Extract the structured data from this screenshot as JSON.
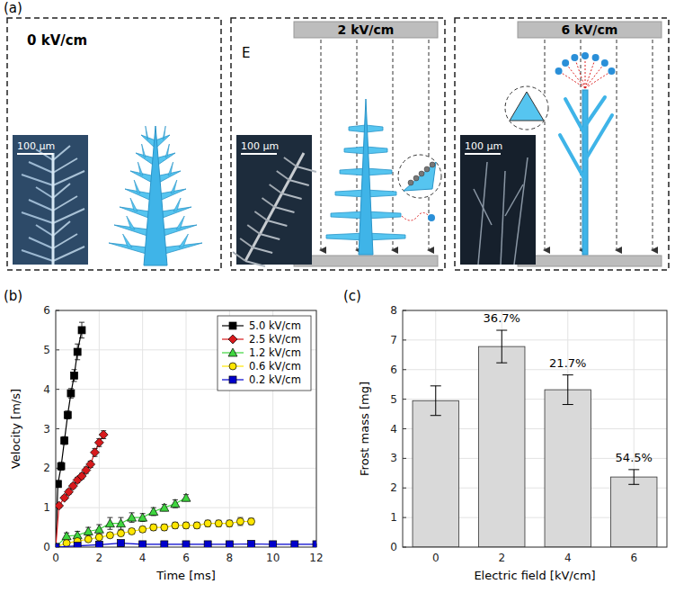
{
  "figure": {
    "panel_labels": [
      "(a)",
      "(b)",
      "(c)"
    ]
  },
  "diagram": {
    "field_symbol": "E",
    "panels": [
      {
        "field": "0 kV/cm",
        "scale_bar": "100 µm"
      },
      {
        "field": "2 kV/cm",
        "scale_bar": "100 µm"
      },
      {
        "field": "6 kV/cm",
        "scale_bar": "100 µm"
      }
    ]
  },
  "chart_data": [
    {
      "type": "line",
      "x_label": "Time [ms]",
      "y_label": "Velocity [m/s]",
      "xlim": [
        0,
        12
      ],
      "xticks": [
        0,
        2,
        4,
        6,
        8,
        10,
        12
      ],
      "ylim": [
        0,
        6
      ],
      "yticks": [
        0,
        1,
        2,
        3,
        4,
        5,
        6
      ],
      "grid": true,
      "legend": "upper right",
      "series": [
        {
          "name": "5.0 kV/cm",
          "color": "#000000",
          "marker": "square",
          "x": [
            0,
            0.1,
            0.25,
            0.4,
            0.55,
            0.7,
            0.85,
            1.0,
            1.2
          ],
          "values": [
            0,
            1.6,
            2.05,
            2.7,
            3.35,
            3.9,
            4.35,
            4.95,
            5.5
          ],
          "errors": [
            0,
            0.08,
            0.1,
            0.1,
            0.1,
            0.12,
            0.15,
            0.2,
            0.2
          ]
        },
        {
          "name": "2.5 kV/cm",
          "color": "#d7191c",
          "marker": "diamond",
          "x": [
            0,
            0.15,
            0.4,
            0.6,
            0.8,
            1.0,
            1.2,
            1.4,
            1.6,
            1.8,
            2.0,
            2.2
          ],
          "values": [
            0,
            1.05,
            1.25,
            1.4,
            1.55,
            1.7,
            1.8,
            1.95,
            2.1,
            2.4,
            2.65,
            2.85
          ],
          "errors": [
            0,
            0.05,
            0.05,
            0.06,
            0.06,
            0.07,
            0.07,
            0.08,
            0.08,
            0.1,
            0.1,
            0.1
          ]
        },
        {
          "name": "1.2 kV/cm",
          "color": "#3fd63f",
          "marker": "triangle",
          "x": [
            0,
            0.5,
            1,
            1.5,
            2,
            2.5,
            3,
            3.5,
            4,
            4.5,
            5,
            5.5,
            6
          ],
          "values": [
            0,
            0.28,
            0.3,
            0.4,
            0.45,
            0.6,
            0.6,
            0.75,
            0.75,
            0.9,
            1.0,
            1.1,
            1.25
          ],
          "errors": [
            0,
            0.08,
            0.1,
            0.1,
            0.12,
            0.15,
            0.15,
            0.12,
            0.1,
            0.1,
            0.08,
            0.1,
            0.08
          ]
        },
        {
          "name": "0.6 kV/cm",
          "color": "#ffe600",
          "marker": "circle",
          "x": [
            0,
            0.5,
            1,
            1.5,
            2,
            2.5,
            3,
            3.5,
            4,
            4.5,
            5,
            5.5,
            6,
            6.5,
            7,
            7.5,
            8,
            8.5,
            9
          ],
          "values": [
            0,
            0.1,
            0.15,
            0.2,
            0.25,
            0.3,
            0.35,
            0.4,
            0.45,
            0.5,
            0.5,
            0.55,
            0.55,
            0.55,
            0.6,
            0.6,
            0.6,
            0.65,
            0.65
          ],
          "errors": [
            0,
            0.03,
            0.04,
            0.05,
            0.05,
            0.06,
            0.06,
            0.07,
            0.07,
            0.08,
            0.08,
            0.08,
            0.08,
            0.08,
            0.08,
            0.08,
            0.08,
            0.1,
            0.08
          ]
        },
        {
          "name": "0.2 kV/cm",
          "color": "#0000cc",
          "marker": "square",
          "x": [
            0,
            1,
            2,
            3,
            4,
            5,
            6,
            7,
            8,
            9,
            10,
            11,
            12
          ],
          "values": [
            0,
            0.03,
            0.06,
            0.1,
            0.07,
            0.07,
            0.07,
            0.07,
            0.07,
            0.08,
            0.07,
            0.07,
            0.07
          ],
          "errors": [
            0,
            0.02,
            0.02,
            0.02,
            0.02,
            0.02,
            0.02,
            0.02,
            0.02,
            0.02,
            0.02,
            0.02,
            0.02
          ]
        }
      ]
    },
    {
      "type": "bar",
      "x_label": "Electric field [kV/cm]",
      "y_label": "Frost mass [mg]",
      "categories": [
        "0",
        "2",
        "4",
        "6"
      ],
      "values": [
        4.95,
        6.78,
        5.32,
        2.37
      ],
      "errors": [
        0.5,
        0.55,
        0.5,
        0.25
      ],
      "color": "#d9d9d9",
      "ylim": [
        0,
        8
      ],
      "yticks": [
        0,
        1,
        2,
        3,
        4,
        5,
        6,
        7,
        8
      ],
      "grid": true,
      "annotations": [
        {
          "text": "36.7%",
          "category": "2"
        },
        {
          "text": "21.7%",
          "category": "4"
        },
        {
          "text": "54.5%",
          "category": "6"
        }
      ]
    }
  ]
}
